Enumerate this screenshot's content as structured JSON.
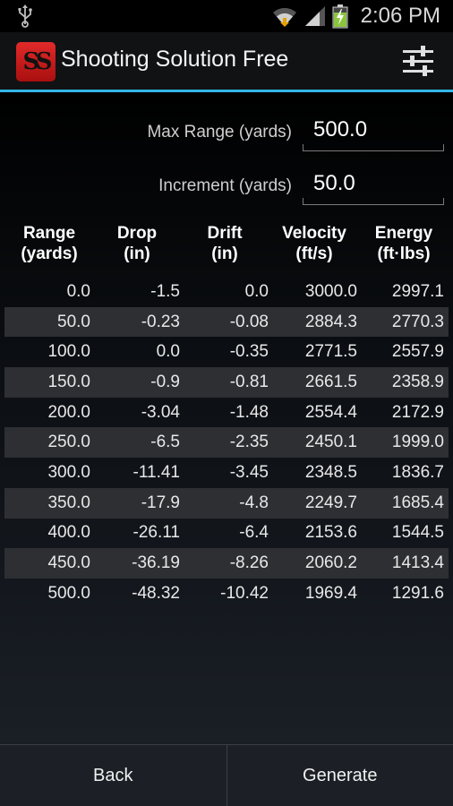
{
  "status_bar": {
    "time": "2:06 PM",
    "icons": [
      "usb-icon",
      "wifi-icon",
      "signal-icon",
      "battery-charging-icon"
    ]
  },
  "app_bar": {
    "title": "Shooting Solution Free",
    "logo_text": "SS",
    "menu_icon": "settings-sliders-icon"
  },
  "form": {
    "max_range": {
      "label": "Max Range (yards)",
      "value": "500.0"
    },
    "increment": {
      "label": "Increment (yards)",
      "value": "50.0"
    }
  },
  "table": {
    "headers": [
      {
        "line1": "Range",
        "line2": "(yards)"
      },
      {
        "line1": "Drop",
        "line2": "(in)"
      },
      {
        "line1": "Drift",
        "line2": "(in)"
      },
      {
        "line1": "Velocity",
        "line2": "(ft/s)"
      },
      {
        "line1": "Energy",
        "line2": "(ft·lbs)"
      }
    ],
    "rows": [
      [
        "0.0",
        "-1.5",
        "0.0",
        "3000.0",
        "2997.1"
      ],
      [
        "50.0",
        "-0.23",
        "-0.08",
        "2884.3",
        "2770.3"
      ],
      [
        "100.0",
        "0.0",
        "-0.35",
        "2771.5",
        "2557.9"
      ],
      [
        "150.0",
        "-0.9",
        "-0.81",
        "2661.5",
        "2358.9"
      ],
      [
        "200.0",
        "-3.04",
        "-1.48",
        "2554.4",
        "2172.9"
      ],
      [
        "250.0",
        "-6.5",
        "-2.35",
        "2450.1",
        "1999.0"
      ],
      [
        "300.0",
        "-11.41",
        "-3.45",
        "2348.5",
        "1836.7"
      ],
      [
        "350.0",
        "-17.9",
        "-4.8",
        "2249.7",
        "1685.4"
      ],
      [
        "400.0",
        "-26.11",
        "-6.4",
        "2153.6",
        "1544.5"
      ],
      [
        "450.0",
        "-36.19",
        "-8.26",
        "2060.2",
        "1413.4"
      ],
      [
        "500.0",
        "-48.32",
        "-10.42",
        "1969.4",
        "1291.6"
      ]
    ]
  },
  "buttons": {
    "back": "Back",
    "generate": "Generate"
  },
  "colors": {
    "accent": "#33b5e5",
    "logo_red": "#d42020",
    "row_shade": "#2d2f33"
  }
}
